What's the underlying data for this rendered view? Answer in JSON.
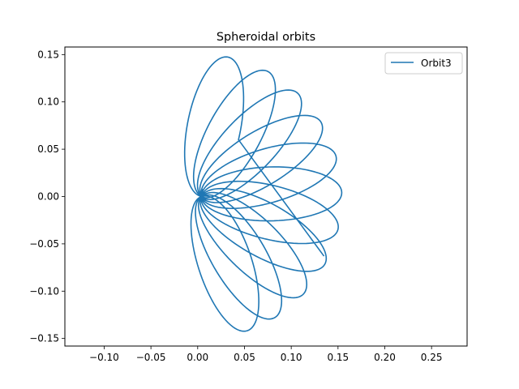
{
  "chart_data": {
    "type": "line",
    "title": "Spheroidal orbits",
    "xlabel": "",
    "ylabel": "",
    "xlim": [
      -0.142,
      0.288
    ],
    "ylim": [
      -0.158,
      0.158
    ],
    "x_ticks": [
      -0.1,
      -0.05,
      0.0,
      0.05,
      0.1,
      0.15,
      0.2,
      0.25
    ],
    "x_tick_labels": [
      "−0.10",
      "−0.05",
      "0.00",
      "0.05",
      "0.10",
      "0.15",
      "0.20",
      "0.25"
    ],
    "y_ticks": [
      -0.15,
      -0.1,
      -0.05,
      0.0,
      0.05,
      0.1,
      0.15
    ],
    "y_tick_labels": [
      "−0.15",
      "−0.10",
      "−0.05",
      "0.00",
      "0.05",
      "0.10",
      "0.15"
    ],
    "grid": false,
    "legend_position": "top-right",
    "colors": {
      "series": "#1f77b4",
      "axes": "#000000",
      "background": "#ffffff"
    },
    "series": [
      {
        "name": "Orbit3",
        "loop_angles_deg": [
          -72.5,
          -60,
          -45,
          -30,
          -15,
          0,
          15,
          30,
          45,
          60,
          77.5
        ],
        "loop_apoapsis_distance": 0.15,
        "loop_width_ratio": 0.19,
        "start": [
          0.005,
          0.008
        ],
        "end": [
          0.135,
          -0.063
        ]
      }
    ]
  }
}
